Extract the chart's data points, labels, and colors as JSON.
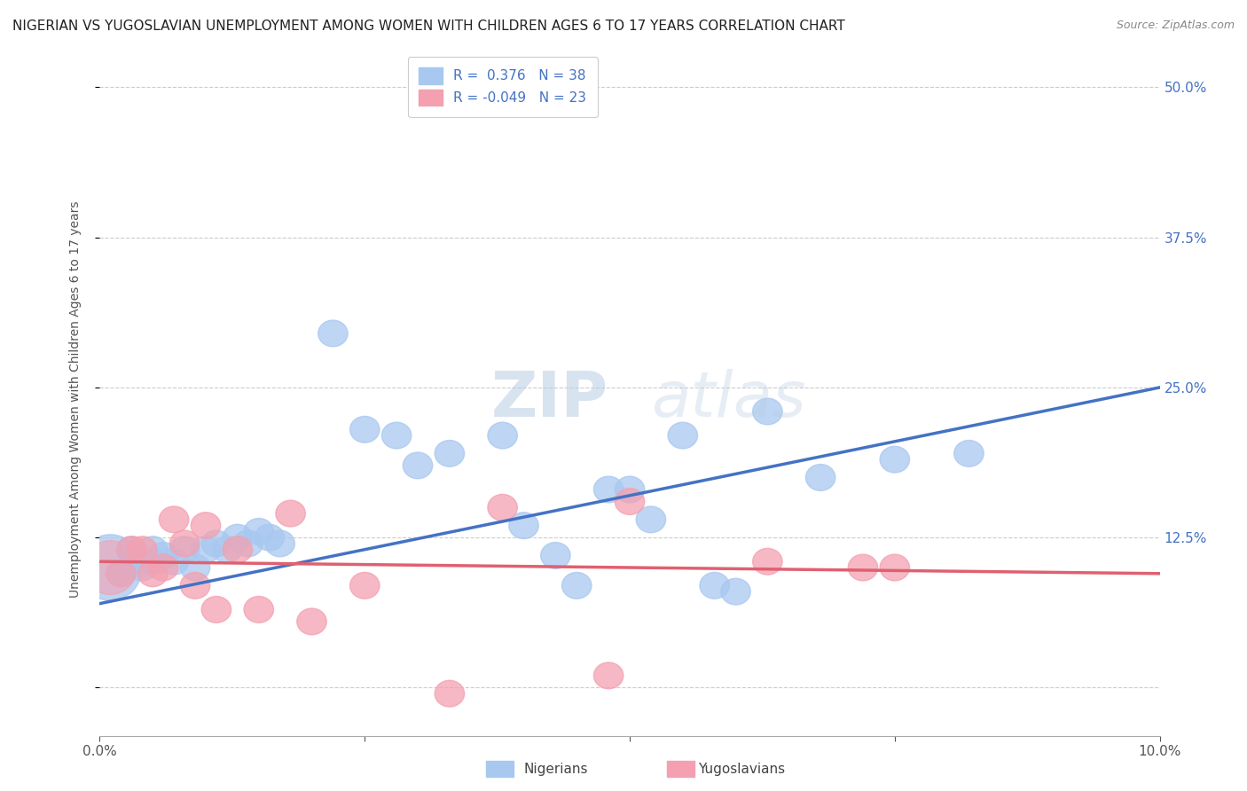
{
  "title": "NIGERIAN VS YUGOSLAVIAN UNEMPLOYMENT AMONG WOMEN WITH CHILDREN AGES 6 TO 17 YEARS CORRELATION CHART",
  "source": "Source: ZipAtlas.com",
  "ylabel": "Unemployment Among Women with Children Ages 6 to 17 years",
  "xlabel_nigerian": "Nigerians",
  "xlabel_yugoslavian": "Yugoslavians",
  "xmin": 0.0,
  "xmax": 0.1,
  "ymin": -0.04,
  "ymax": 0.52,
  "xticks": [
    0.0,
    0.025,
    0.05,
    0.075,
    0.1
  ],
  "xtick_labels": [
    "0.0%",
    "",
    "",
    "",
    "10.0%"
  ],
  "yticks": [
    0.0,
    0.125,
    0.25,
    0.375,
    0.5
  ],
  "ytick_labels_right": [
    "",
    "12.5%",
    "25.0%",
    "37.5%",
    "50.0%"
  ],
  "nigerian_R": 0.376,
  "nigerian_N": 38,
  "yugoslavian_R": -0.049,
  "yugoslavian_N": 23,
  "nigerian_color": "#a8c8f0",
  "yugoslavian_color": "#f4a0b0",
  "nigerian_line_color": "#4472c4",
  "yugoslavian_line_color": "#e06070",
  "title_fontsize": 11,
  "source_fontsize": 9,
  "axis_label_fontsize": 10,
  "tick_fontsize": 11,
  "legend_fontsize": 11,
  "nigerian_x": [
    0.001,
    0.002,
    0.003,
    0.003,
    0.004,
    0.005,
    0.005,
    0.006,
    0.007,
    0.008,
    0.009,
    0.01,
    0.011,
    0.012,
    0.013,
    0.014,
    0.015,
    0.016,
    0.017,
    0.022,
    0.025,
    0.028,
    0.03,
    0.033,
    0.038,
    0.04,
    0.043,
    0.045,
    0.048,
    0.05,
    0.052,
    0.055,
    0.058,
    0.06,
    0.063,
    0.068,
    0.075,
    0.082
  ],
  "nigerian_y": [
    0.1,
    0.095,
    0.105,
    0.115,
    0.1,
    0.105,
    0.115,
    0.11,
    0.105,
    0.115,
    0.1,
    0.115,
    0.12,
    0.115,
    0.125,
    0.12,
    0.13,
    0.125,
    0.12,
    0.295,
    0.215,
    0.21,
    0.185,
    0.195,
    0.21,
    0.135,
    0.11,
    0.085,
    0.165,
    0.165,
    0.14,
    0.21,
    0.085,
    0.08,
    0.23,
    0.175,
    0.19,
    0.195
  ],
  "nigerian_sizes": [
    18,
    15,
    12,
    12,
    12,
    12,
    12,
    12,
    12,
    12,
    12,
    12,
    12,
    12,
    12,
    12,
    12,
    12,
    12,
    12,
    12,
    12,
    12,
    12,
    12,
    12,
    12,
    12,
    12,
    12,
    12,
    12,
    12,
    12,
    12,
    12,
    12,
    12
  ],
  "yugoslavian_x": [
    0.001,
    0.002,
    0.003,
    0.004,
    0.005,
    0.006,
    0.007,
    0.008,
    0.009,
    0.01,
    0.011,
    0.013,
    0.015,
    0.018,
    0.02,
    0.025,
    0.033,
    0.038,
    0.048,
    0.05,
    0.063,
    0.072,
    0.075
  ],
  "yugoslavian_y": [
    0.105,
    0.095,
    0.115,
    0.115,
    0.095,
    0.1,
    0.14,
    0.12,
    0.085,
    0.135,
    0.065,
    0.115,
    0.065,
    0.145,
    0.055,
    0.085,
    -0.005,
    0.15,
    0.01,
    0.155,
    0.105,
    0.1,
    0.1
  ],
  "background_color": "#ffffff",
  "watermark_color": "#c8d8e8",
  "watermark_alpha": 0.5
}
